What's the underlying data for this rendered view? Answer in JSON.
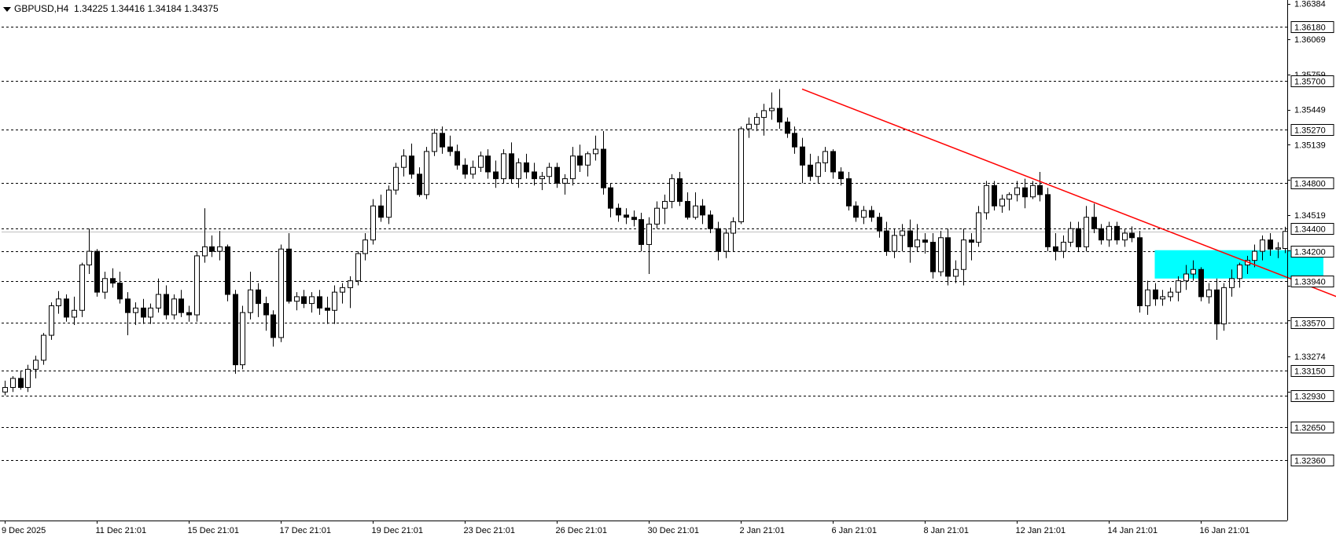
{
  "header": {
    "symbol": "GBPUSD,H4",
    "open": "1.34225",
    "high": "1.34416",
    "low": "1.34184",
    "close": "1.34375"
  },
  "colors": {
    "background": "#ffffff",
    "grid": "#000000",
    "candle_bull_body": "#ffffff",
    "candle_bear_body": "#000000",
    "candle_wick": "#000000",
    "trendline": "#ff0000",
    "zone": "#00ffff",
    "bid_line": "#c0c0c0"
  },
  "chart_data": {
    "type": "candlestick",
    "title": "",
    "xlabel": "",
    "ylabel": "",
    "ylim": [
      1.3222,
      1.3654
    ],
    "y_axis_ticks": [
      "1.36384",
      "1.36069",
      "1.35759",
      "1.35449",
      "1.35139",
      "1.34829",
      "1.34519",
      "1.34209",
      "1.33899",
      "1.33589",
      "1.33274",
      "1.32964"
    ],
    "x_axis_ticks": [
      {
        "bar": 0,
        "label": "9 Dec 2025"
      },
      {
        "bar": 12,
        "label": "11 Dec 21:01"
      },
      {
        "bar": 24,
        "label": "15 Dec 21:01"
      },
      {
        "bar": 36,
        "label": "17 Dec 21:01"
      },
      {
        "bar": 48,
        "label": "19 Dec 21:01"
      },
      {
        "bar": 60,
        "label": "23 Dec 21:01"
      },
      {
        "bar": 72,
        "label": "26 Dec 21:01"
      },
      {
        "bar": 84,
        "label": "30 Dec 21:01"
      },
      {
        "bar": 96,
        "label": "2 Jan 21:01"
      },
      {
        "bar": 108,
        "label": "6 Jan 21:01"
      },
      {
        "bar": 120,
        "label": "8 Jan 21:01"
      },
      {
        "bar": 132,
        "label": "12 Jan 21:01"
      },
      {
        "bar": 144,
        "label": "14 Jan 21:01"
      },
      {
        "bar": 156,
        "label": "16 Jan 21:01"
      }
    ],
    "horizontal_levels": [
      "1.36180",
      "1.35700",
      "1.35270",
      "1.34800",
      "1.34400",
      "1.34200",
      "1.33940",
      "1.33570",
      "1.33150",
      "1.32930",
      "1.32650",
      "1.32360"
    ],
    "current_price": 1.34375,
    "trendline": {
      "from": {
        "bar": 104,
        "price": 1.3563
      },
      "to": {
        "bar": 205,
        "price": 1.3298
      }
    },
    "zone": {
      "from_bar": 150,
      "to_bar": 172,
      "top": 1.3421,
      "bottom": 1.3396
    },
    "candles": [
      {
        "o": 1.3296,
        "h": 1.3306,
        "l": 1.3293,
        "c": 1.33
      },
      {
        "o": 1.33,
        "h": 1.331,
        "l": 1.3296,
        "c": 1.3308
      },
      {
        "o": 1.3308,
        "h": 1.3315,
        "l": 1.3298,
        "c": 1.33
      },
      {
        "o": 1.33,
        "h": 1.332,
        "l": 1.3296,
        "c": 1.3316
      },
      {
        "o": 1.3316,
        "h": 1.3328,
        "l": 1.3308,
        "c": 1.3324
      },
      {
        "o": 1.3324,
        "h": 1.3348,
        "l": 1.332,
        "c": 1.3346
      },
      {
        "o": 1.3346,
        "h": 1.3375,
        "l": 1.3342,
        "c": 1.3372
      },
      {
        "o": 1.3372,
        "h": 1.3385,
        "l": 1.3365,
        "c": 1.3378
      },
      {
        "o": 1.3378,
        "h": 1.3382,
        "l": 1.3358,
        "c": 1.3362
      },
      {
        "o": 1.3362,
        "h": 1.338,
        "l": 1.3355,
        "c": 1.3368
      },
      {
        "o": 1.3368,
        "h": 1.341,
        "l": 1.3362,
        "c": 1.3408
      },
      {
        "o": 1.3408,
        "h": 1.344,
        "l": 1.34,
        "c": 1.342
      },
      {
        "o": 1.342,
        "h": 1.3422,
        "l": 1.338,
        "c": 1.3384
      },
      {
        "o": 1.3384,
        "h": 1.3402,
        "l": 1.3378,
        "c": 1.3396
      },
      {
        "o": 1.3396,
        "h": 1.3405,
        "l": 1.3388,
        "c": 1.3392
      },
      {
        "o": 1.3392,
        "h": 1.3402,
        "l": 1.3374,
        "c": 1.3378
      },
      {
        "o": 1.3378,
        "h": 1.3384,
        "l": 1.3346,
        "c": 1.3366
      },
      {
        "o": 1.3366,
        "h": 1.3375,
        "l": 1.3355,
        "c": 1.337
      },
      {
        "o": 1.337,
        "h": 1.3378,
        "l": 1.3356,
        "c": 1.3362
      },
      {
        "o": 1.3362,
        "h": 1.3374,
        "l": 1.3356,
        "c": 1.337
      },
      {
        "o": 1.337,
        "h": 1.3396,
        "l": 1.3366,
        "c": 1.3382
      },
      {
        "o": 1.3382,
        "h": 1.339,
        "l": 1.336,
        "c": 1.3364
      },
      {
        "o": 1.3364,
        "h": 1.3382,
        "l": 1.336,
        "c": 1.3378
      },
      {
        "o": 1.3378,
        "h": 1.3386,
        "l": 1.3362,
        "c": 1.3366
      },
      {
        "o": 1.3366,
        "h": 1.3372,
        "l": 1.3358,
        "c": 1.3364
      },
      {
        "o": 1.3364,
        "h": 1.342,
        "l": 1.3358,
        "c": 1.3416
      },
      {
        "o": 1.3416,
        "h": 1.3458,
        "l": 1.341,
        "c": 1.3424
      },
      {
        "o": 1.3424,
        "h": 1.3434,
        "l": 1.3415,
        "c": 1.342
      },
      {
        "o": 1.342,
        "h": 1.3438,
        "l": 1.3412,
        "c": 1.3424
      },
      {
        "o": 1.3424,
        "h": 1.3426,
        "l": 1.3376,
        "c": 1.3382
      },
      {
        "o": 1.3382,
        "h": 1.3386,
        "l": 1.3312,
        "c": 1.332
      },
      {
        "o": 1.332,
        "h": 1.3372,
        "l": 1.3316,
        "c": 1.3366
      },
      {
        "o": 1.3366,
        "h": 1.3402,
        "l": 1.336,
        "c": 1.3386
      },
      {
        "o": 1.3386,
        "h": 1.3392,
        "l": 1.3362,
        "c": 1.3374
      },
      {
        "o": 1.3374,
        "h": 1.338,
        "l": 1.335,
        "c": 1.3364
      },
      {
        "o": 1.3364,
        "h": 1.3368,
        "l": 1.3336,
        "c": 1.3344
      },
      {
        "o": 1.3344,
        "h": 1.3426,
        "l": 1.334,
        "c": 1.3422
      },
      {
        "o": 1.3422,
        "h": 1.3436,
        "l": 1.3374,
        "c": 1.3376
      },
      {
        "o": 1.3376,
        "h": 1.3384,
        "l": 1.3368,
        "c": 1.338
      },
      {
        "o": 1.338,
        "h": 1.3386,
        "l": 1.337,
        "c": 1.3374
      },
      {
        "o": 1.3374,
        "h": 1.3384,
        "l": 1.3366,
        "c": 1.338
      },
      {
        "o": 1.338,
        "h": 1.3386,
        "l": 1.3364,
        "c": 1.337
      },
      {
        "o": 1.337,
        "h": 1.338,
        "l": 1.3356,
        "c": 1.3368
      },
      {
        "o": 1.3368,
        "h": 1.339,
        "l": 1.3356,
        "c": 1.3384
      },
      {
        "o": 1.3384,
        "h": 1.3392,
        "l": 1.3374,
        "c": 1.3388
      },
      {
        "o": 1.3388,
        "h": 1.3398,
        "l": 1.337,
        "c": 1.3394
      },
      {
        "o": 1.3394,
        "h": 1.342,
        "l": 1.339,
        "c": 1.3418
      },
      {
        "o": 1.3418,
        "h": 1.3436,
        "l": 1.3412,
        "c": 1.343
      },
      {
        "o": 1.343,
        "h": 1.3466,
        "l": 1.3426,
        "c": 1.346
      },
      {
        "o": 1.346,
        "h": 1.347,
        "l": 1.3446,
        "c": 1.345
      },
      {
        "o": 1.345,
        "h": 1.3478,
        "l": 1.3444,
        "c": 1.3474
      },
      {
        "o": 1.3474,
        "h": 1.3498,
        "l": 1.347,
        "c": 1.3494
      },
      {
        "o": 1.3494,
        "h": 1.351,
        "l": 1.3486,
        "c": 1.3504
      },
      {
        "o": 1.3504,
        "h": 1.3515,
        "l": 1.3484,
        "c": 1.3488
      },
      {
        "o": 1.3488,
        "h": 1.3494,
        "l": 1.3468,
        "c": 1.347
      },
      {
        "o": 1.347,
        "h": 1.3512,
        "l": 1.3466,
        "c": 1.3508
      },
      {
        "o": 1.3508,
        "h": 1.3528,
        "l": 1.3504,
        "c": 1.3524
      },
      {
        "o": 1.3524,
        "h": 1.353,
        "l": 1.3506,
        "c": 1.3512
      },
      {
        "o": 1.3512,
        "h": 1.3522,
        "l": 1.3504,
        "c": 1.3508
      },
      {
        "o": 1.3508,
        "h": 1.3514,
        "l": 1.3492,
        "c": 1.3496
      },
      {
        "o": 1.3496,
        "h": 1.3502,
        "l": 1.3484,
        "c": 1.3488
      },
      {
        "o": 1.3488,
        "h": 1.35,
        "l": 1.3484,
        "c": 1.3494
      },
      {
        "o": 1.3494,
        "h": 1.3508,
        "l": 1.349,
        "c": 1.3504
      },
      {
        "o": 1.3504,
        "h": 1.351,
        "l": 1.3484,
        "c": 1.349
      },
      {
        "o": 1.349,
        "h": 1.35,
        "l": 1.3476,
        "c": 1.3484
      },
      {
        "o": 1.3484,
        "h": 1.351,
        "l": 1.348,
        "c": 1.3506
      },
      {
        "o": 1.3506,
        "h": 1.3516,
        "l": 1.348,
        "c": 1.3484
      },
      {
        "o": 1.3484,
        "h": 1.3502,
        "l": 1.3476,
        "c": 1.3498
      },
      {
        "o": 1.3498,
        "h": 1.3506,
        "l": 1.3484,
        "c": 1.349
      },
      {
        "o": 1.349,
        "h": 1.3498,
        "l": 1.3478,
        "c": 1.3484
      },
      {
        "o": 1.3484,
        "h": 1.349,
        "l": 1.3474,
        "c": 1.3486
      },
      {
        "o": 1.3486,
        "h": 1.3498,
        "l": 1.348,
        "c": 1.3494
      },
      {
        "o": 1.3494,
        "h": 1.3498,
        "l": 1.3476,
        "c": 1.348
      },
      {
        "o": 1.348,
        "h": 1.3488,
        "l": 1.347,
        "c": 1.3484
      },
      {
        "o": 1.3484,
        "h": 1.3512,
        "l": 1.3478,
        "c": 1.3504
      },
      {
        "o": 1.3504,
        "h": 1.3514,
        "l": 1.349,
        "c": 1.3496
      },
      {
        "o": 1.3496,
        "h": 1.3508,
        "l": 1.3486,
        "c": 1.3506
      },
      {
        "o": 1.3506,
        "h": 1.3522,
        "l": 1.35,
        "c": 1.351
      },
      {
        "o": 1.351,
        "h": 1.3526,
        "l": 1.347,
        "c": 1.3476
      },
      {
        "o": 1.3476,
        "h": 1.348,
        "l": 1.345,
        "c": 1.3458
      },
      {
        "o": 1.3458,
        "h": 1.3462,
        "l": 1.3446,
        "c": 1.3452
      },
      {
        "o": 1.3452,
        "h": 1.3458,
        "l": 1.3444,
        "c": 1.345
      },
      {
        "o": 1.345,
        "h": 1.3456,
        "l": 1.3442,
        "c": 1.3448
      },
      {
        "o": 1.3448,
        "h": 1.3454,
        "l": 1.342,
        "c": 1.3426
      },
      {
        "o": 1.3426,
        "h": 1.345,
        "l": 1.34,
        "c": 1.3444
      },
      {
        "o": 1.3444,
        "h": 1.3464,
        "l": 1.344,
        "c": 1.3458
      },
      {
        "o": 1.3458,
        "h": 1.347,
        "l": 1.3444,
        "c": 1.3464
      },
      {
        "o": 1.3464,
        "h": 1.3488,
        "l": 1.3458,
        "c": 1.3484
      },
      {
        "o": 1.3484,
        "h": 1.349,
        "l": 1.346,
        "c": 1.3464
      },
      {
        "o": 1.3464,
        "h": 1.3472,
        "l": 1.3448,
        "c": 1.345
      },
      {
        "o": 1.345,
        "h": 1.3472,
        "l": 1.3448,
        "c": 1.346
      },
      {
        "o": 1.346,
        "h": 1.3466,
        "l": 1.3444,
        "c": 1.3452
      },
      {
        "o": 1.3452,
        "h": 1.3456,
        "l": 1.3436,
        "c": 1.344
      },
      {
        "o": 1.344,
        "h": 1.3446,
        "l": 1.3412,
        "c": 1.342
      },
      {
        "o": 1.342,
        "h": 1.344,
        "l": 1.3414,
        "c": 1.3436
      },
      {
        "o": 1.3436,
        "h": 1.345,
        "l": 1.342,
        "c": 1.3446
      },
      {
        "o": 1.3446,
        "h": 1.353,
        "l": 1.3444,
        "c": 1.3528
      },
      {
        "o": 1.3528,
        "h": 1.3538,
        "l": 1.352,
        "c": 1.3532
      },
      {
        "o": 1.3532,
        "h": 1.3542,
        "l": 1.3526,
        "c": 1.3538
      },
      {
        "o": 1.3538,
        "h": 1.355,
        "l": 1.3522,
        "c": 1.3544
      },
      {
        "o": 1.3544,
        "h": 1.356,
        "l": 1.3536,
        "c": 1.3546
      },
      {
        "o": 1.3546,
        "h": 1.3563,
        "l": 1.3528,
        "c": 1.3534
      },
      {
        "o": 1.3534,
        "h": 1.3538,
        "l": 1.352,
        "c": 1.3524
      },
      {
        "o": 1.3524,
        "h": 1.353,
        "l": 1.3506,
        "c": 1.3512
      },
      {
        "o": 1.3512,
        "h": 1.352,
        "l": 1.348,
        "c": 1.3496
      },
      {
        "o": 1.3496,
        "h": 1.3506,
        "l": 1.3482,
        "c": 1.3486
      },
      {
        "o": 1.3486,
        "h": 1.3504,
        "l": 1.348,
        "c": 1.3498
      },
      {
        "o": 1.3498,
        "h": 1.3512,
        "l": 1.349,
        "c": 1.3508
      },
      {
        "o": 1.3508,
        "h": 1.351,
        "l": 1.3484,
        "c": 1.349
      },
      {
        "o": 1.349,
        "h": 1.3494,
        "l": 1.3478,
        "c": 1.3484
      },
      {
        "o": 1.3484,
        "h": 1.349,
        "l": 1.3456,
        "c": 1.346
      },
      {
        "o": 1.346,
        "h": 1.3464,
        "l": 1.3446,
        "c": 1.345
      },
      {
        "o": 1.345,
        "h": 1.346,
        "l": 1.3444,
        "c": 1.3456
      },
      {
        "o": 1.3456,
        "h": 1.346,
        "l": 1.3446,
        "c": 1.345
      },
      {
        "o": 1.345,
        "h": 1.3454,
        "l": 1.3432,
        "c": 1.3438
      },
      {
        "o": 1.3438,
        "h": 1.3446,
        "l": 1.3416,
        "c": 1.342
      },
      {
        "o": 1.342,
        "h": 1.344,
        "l": 1.3414,
        "c": 1.3434
      },
      {
        "o": 1.3434,
        "h": 1.3444,
        "l": 1.342,
        "c": 1.3438
      },
      {
        "o": 1.3438,
        "h": 1.3448,
        "l": 1.341,
        "c": 1.3424
      },
      {
        "o": 1.3424,
        "h": 1.3444,
        "l": 1.342,
        "c": 1.343
      },
      {
        "o": 1.343,
        "h": 1.3436,
        "l": 1.3418,
        "c": 1.3428
      },
      {
        "o": 1.3428,
        "h": 1.3436,
        "l": 1.3396,
        "c": 1.3402
      },
      {
        "o": 1.3402,
        "h": 1.3438,
        "l": 1.3398,
        "c": 1.3432
      },
      {
        "o": 1.3432,
        "h": 1.344,
        "l": 1.339,
        "c": 1.3398
      },
      {
        "o": 1.3398,
        "h": 1.3412,
        "l": 1.3392,
        "c": 1.3404
      },
      {
        "o": 1.3404,
        "h": 1.344,
        "l": 1.339,
        "c": 1.343
      },
      {
        "o": 1.343,
        "h": 1.3436,
        "l": 1.3412,
        "c": 1.3428
      },
      {
        "o": 1.3428,
        "h": 1.346,
        "l": 1.3424,
        "c": 1.3454
      },
      {
        "o": 1.3454,
        "h": 1.3482,
        "l": 1.3448,
        "c": 1.3478
      },
      {
        "o": 1.3478,
        "h": 1.3482,
        "l": 1.3456,
        "c": 1.346
      },
      {
        "o": 1.346,
        "h": 1.347,
        "l": 1.3454,
        "c": 1.3466
      },
      {
        "o": 1.3466,
        "h": 1.3472,
        "l": 1.3456,
        "c": 1.347
      },
      {
        "o": 1.347,
        "h": 1.3482,
        "l": 1.3464,
        "c": 1.3476
      },
      {
        "o": 1.3476,
        "h": 1.3484,
        "l": 1.3458,
        "c": 1.3468
      },
      {
        "o": 1.3468,
        "h": 1.3482,
        "l": 1.3466,
        "c": 1.3478
      },
      {
        "o": 1.3478,
        "h": 1.349,
        "l": 1.3464,
        "c": 1.347
      },
      {
        "o": 1.347,
        "h": 1.3476,
        "l": 1.342,
        "c": 1.3424
      },
      {
        "o": 1.3424,
        "h": 1.3436,
        "l": 1.3412,
        "c": 1.342
      },
      {
        "o": 1.342,
        "h": 1.3434,
        "l": 1.3414,
        "c": 1.3428
      },
      {
        "o": 1.3428,
        "h": 1.3446,
        "l": 1.3424,
        "c": 1.344
      },
      {
        "o": 1.344,
        "h": 1.3446,
        "l": 1.342,
        "c": 1.3424
      },
      {
        "o": 1.3424,
        "h": 1.346,
        "l": 1.342,
        "c": 1.345
      },
      {
        "o": 1.345,
        "h": 1.3462,
        "l": 1.3436,
        "c": 1.344
      },
      {
        "o": 1.344,
        "h": 1.3444,
        "l": 1.3426,
        "c": 1.343
      },
      {
        "o": 1.343,
        "h": 1.3446,
        "l": 1.3424,
        "c": 1.3442
      },
      {
        "o": 1.3442,
        "h": 1.3446,
        "l": 1.3426,
        "c": 1.343
      },
      {
        "o": 1.343,
        "h": 1.344,
        "l": 1.3424,
        "c": 1.3436
      },
      {
        "o": 1.3436,
        "h": 1.3442,
        "l": 1.3428,
        "c": 1.3432
      },
      {
        "o": 1.3432,
        "h": 1.3438,
        "l": 1.3366,
        "c": 1.3372
      },
      {
        "o": 1.3372,
        "h": 1.3394,
        "l": 1.3364,
        "c": 1.3386
      },
      {
        "o": 1.3386,
        "h": 1.3392,
        "l": 1.3372,
        "c": 1.3378
      },
      {
        "o": 1.3378,
        "h": 1.3386,
        "l": 1.3372,
        "c": 1.338
      },
      {
        "o": 1.338,
        "h": 1.3388,
        "l": 1.3376,
        "c": 1.3384
      },
      {
        "o": 1.3384,
        "h": 1.3398,
        "l": 1.3376,
        "c": 1.3394
      },
      {
        "o": 1.3394,
        "h": 1.3408,
        "l": 1.3386,
        "c": 1.34
      },
      {
        "o": 1.34,
        "h": 1.3412,
        "l": 1.3394,
        "c": 1.3404
      },
      {
        "o": 1.3404,
        "h": 1.3406,
        "l": 1.3376,
        "c": 1.338
      },
      {
        "o": 1.338,
        "h": 1.3392,
        "l": 1.3374,
        "c": 1.3386
      },
      {
        "o": 1.3386,
        "h": 1.3396,
        "l": 1.3342,
        "c": 1.3356
      },
      {
        "o": 1.3356,
        "h": 1.3392,
        "l": 1.335,
        "c": 1.3388
      },
      {
        "o": 1.3388,
        "h": 1.3404,
        "l": 1.338,
        "c": 1.3396
      },
      {
        "o": 1.3396,
        "h": 1.341,
        "l": 1.3388,
        "c": 1.3408
      },
      {
        "o": 1.3408,
        "h": 1.3416,
        "l": 1.34,
        "c": 1.3412
      },
      {
        "o": 1.3412,
        "h": 1.3426,
        "l": 1.3406,
        "c": 1.342
      },
      {
        "o": 1.342,
        "h": 1.3434,
        "l": 1.3412,
        "c": 1.343
      },
      {
        "o": 1.343,
        "h": 1.3436,
        "l": 1.3416,
        "c": 1.3422
      },
      {
        "o": 1.3422,
        "h": 1.3428,
        "l": 1.3414,
        "c": 1.3423
      },
      {
        "o": 1.34225,
        "h": 1.34416,
        "l": 1.34184,
        "c": 1.34375
      }
    ]
  }
}
